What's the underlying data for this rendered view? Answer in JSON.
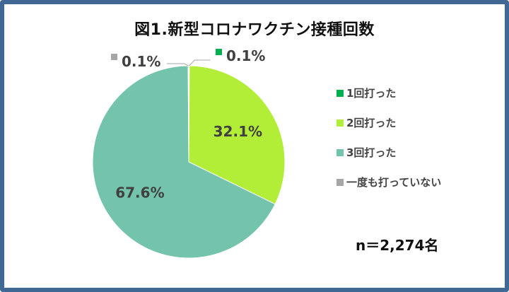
{
  "chart_data": {
    "type": "pie",
    "title": "図1.新型コロナワクチン接種回数",
    "note": "n＝2,274名",
    "slices": [
      {
        "name": "1回打った",
        "value": 0.1,
        "label": "0.1%",
        "color": "#00b050"
      },
      {
        "name": "2回打った",
        "value": 32.1,
        "label": "32.1%",
        "color": "#b2ed37"
      },
      {
        "name": "3回打った",
        "value": 67.6,
        "label": "67.6%",
        "color": "#74c3ac"
      },
      {
        "name": "一度も打っていない",
        "value": 0.1,
        "label": "0.1%",
        "color": "#a6a6a6"
      }
    ],
    "legend_position": "right"
  }
}
